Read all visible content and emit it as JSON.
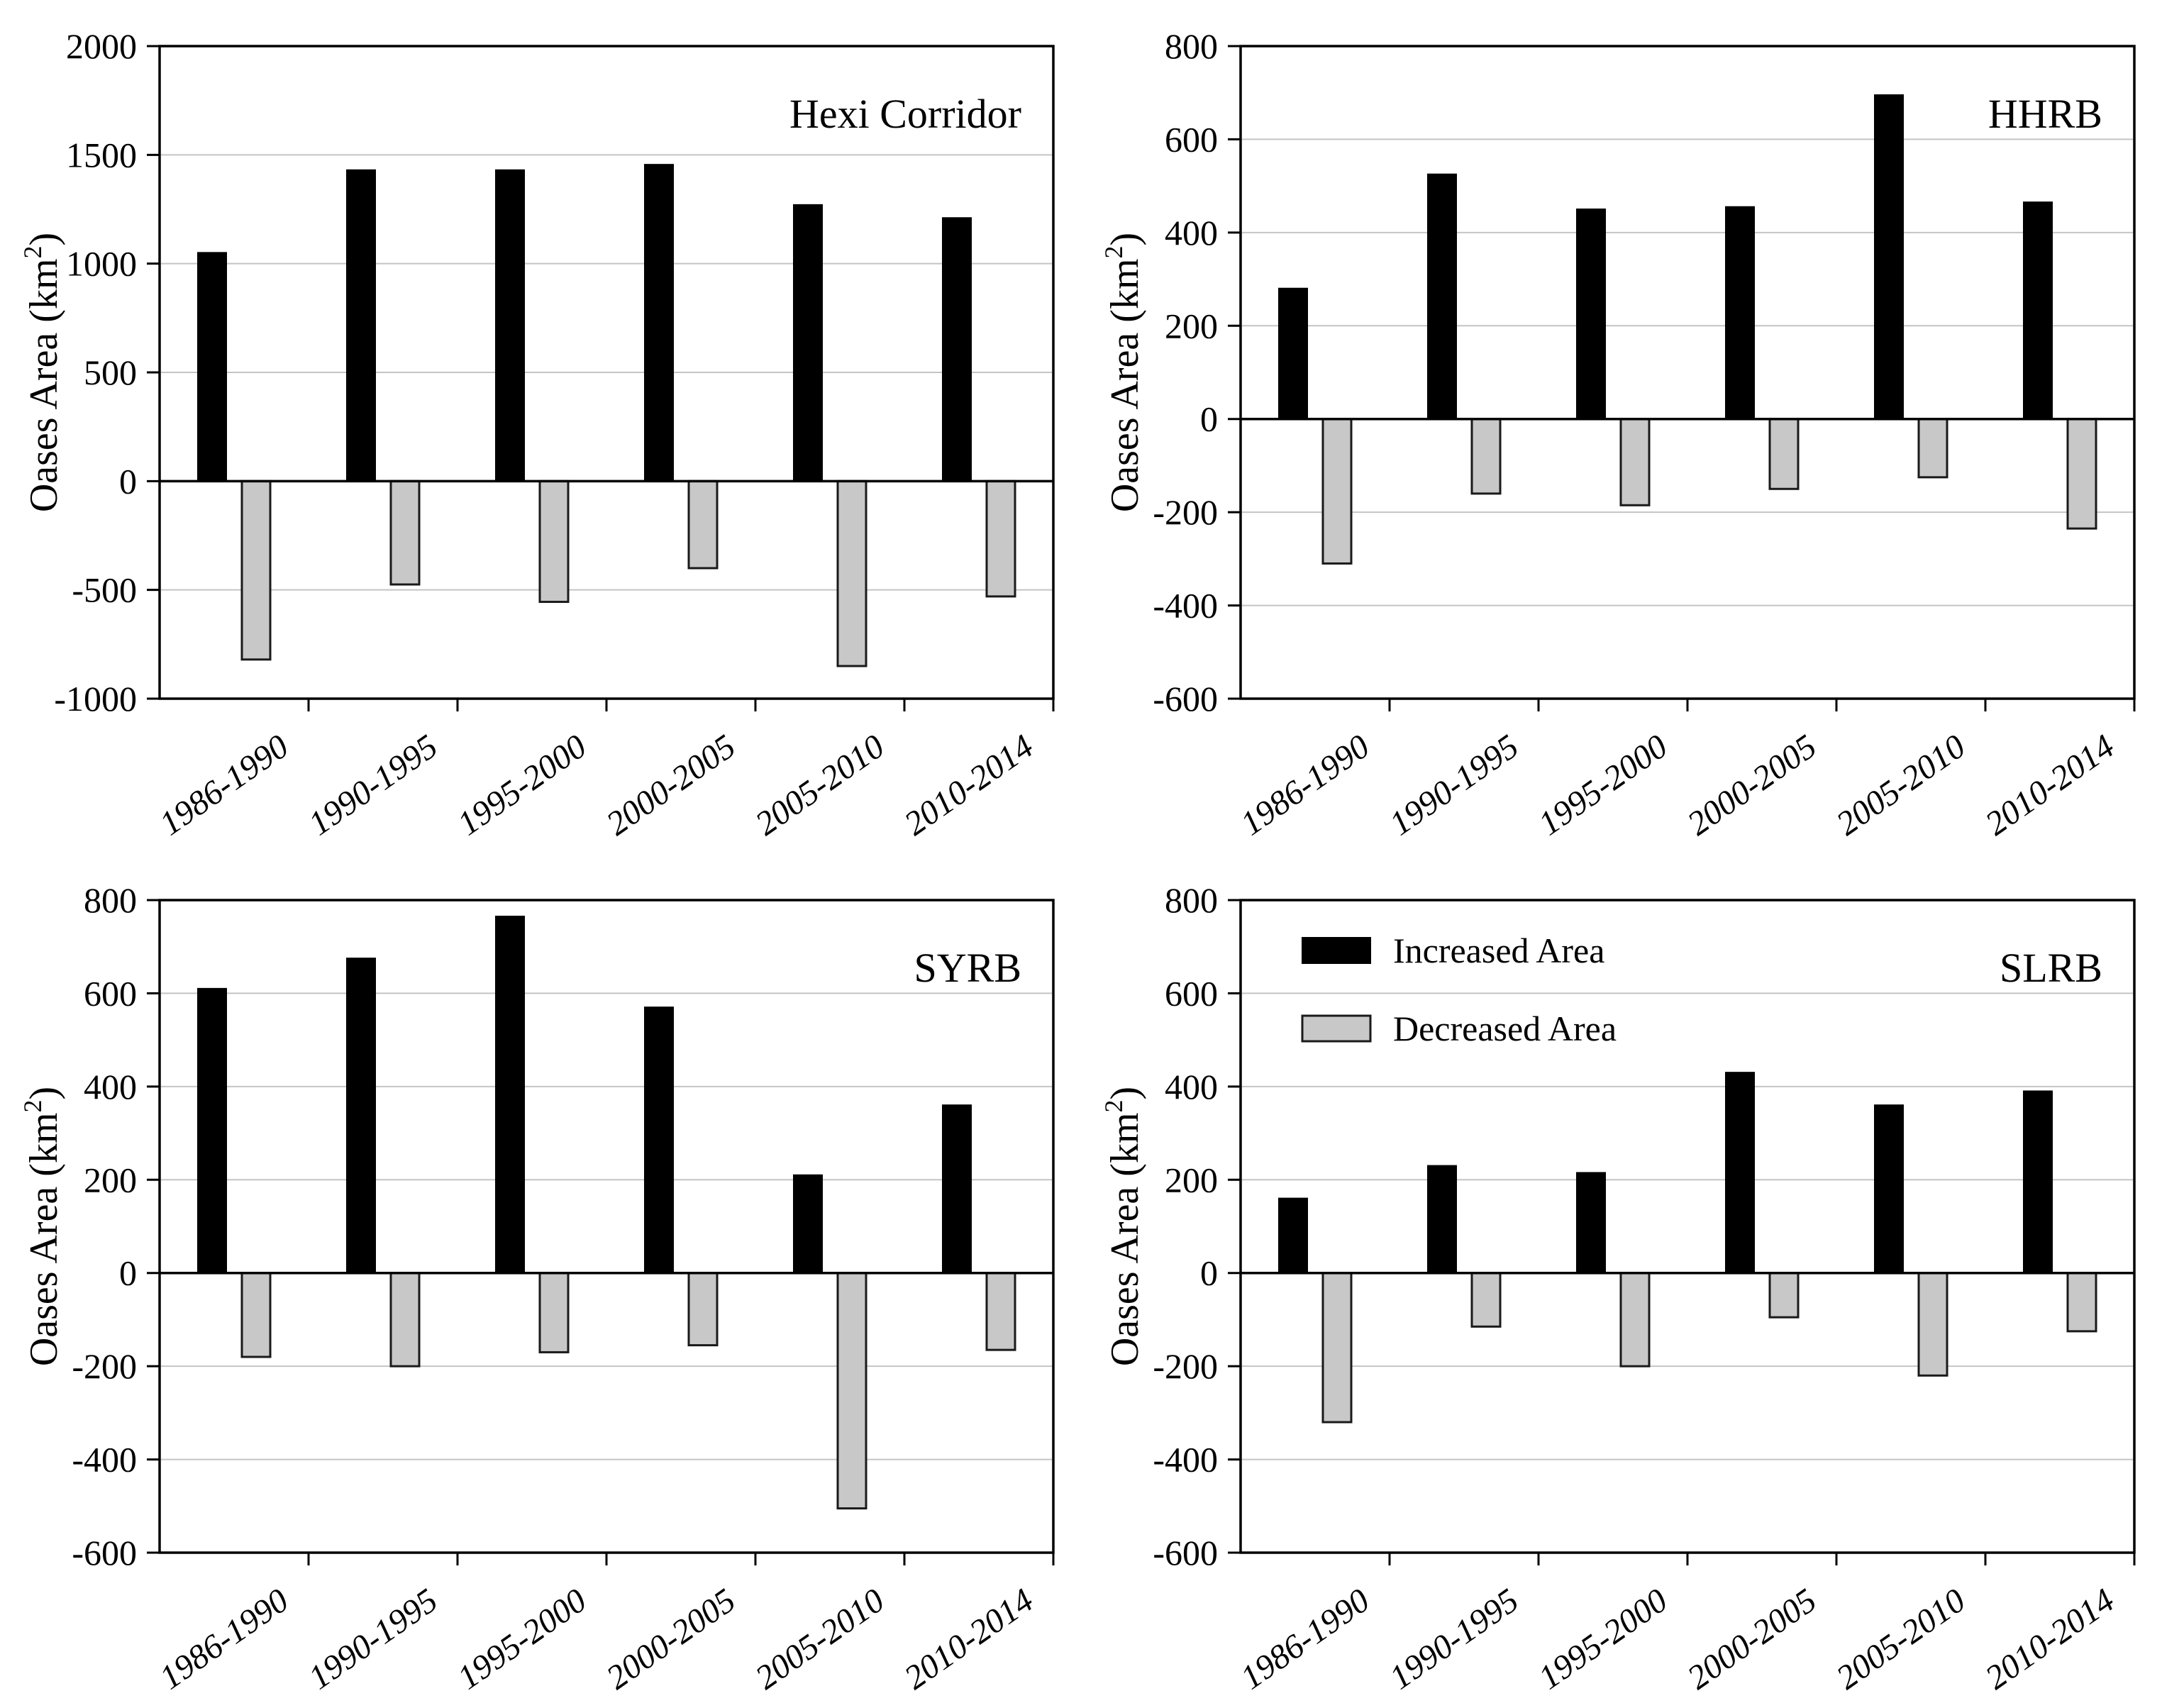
{
  "figure": {
    "ylabel": {
      "main": "Oases Area (km",
      "sup": "2",
      "close": ")"
    },
    "categories": [
      "1986-1990",
      "1990-1995",
      "1995-2000",
      "2000-2005",
      "2005-2010",
      "2010-2014"
    ],
    "legend": [
      {
        "label": "Increased Area",
        "series": "increased"
      },
      {
        "label": "Decreased Area",
        "series": "decreased"
      }
    ],
    "colors": {
      "increased": "#000000",
      "decreased": "#c8c8c8",
      "decreased_border": "#1a1a1a",
      "gridline": "#c4c4c4",
      "axis": "#000000",
      "background": "#ffffff",
      "text": "#000000"
    }
  },
  "chart_data": [
    {
      "type": "bar",
      "title": "Hexi Corridor",
      "ylabel": "Oases Area (km2)",
      "xlabel": "",
      "ylim": [
        -1000,
        2000
      ],
      "yticks": [
        2000,
        1500,
        1000,
        500,
        0,
        -500,
        -1000
      ],
      "grid": true,
      "legend_visible": false,
      "categories": [
        "1986-1990",
        "1990-1995",
        "1995-2000",
        "2000-2005",
        "2005-2010",
        "2010-2014"
      ],
      "series": [
        {
          "name": "Increased Area",
          "values": [
            1050,
            1430,
            1430,
            1455,
            1270,
            1210
          ]
        },
        {
          "name": "Decreased Area",
          "values": [
            -820,
            -475,
            -555,
            -400,
            -850,
            -530
          ]
        }
      ]
    },
    {
      "type": "bar",
      "title": "HHRB",
      "ylabel": "Oases Area (km2)",
      "xlabel": "",
      "ylim": [
        -600,
        800
      ],
      "yticks": [
        800,
        600,
        400,
        200,
        0,
        -200,
        -400,
        -600
      ],
      "grid": true,
      "legend_visible": false,
      "categories": [
        "1986-1990",
        "1990-1995",
        "1995-2000",
        "2000-2005",
        "2005-2010",
        "2010-2014"
      ],
      "series": [
        {
          "name": "Increased Area",
          "values": [
            280,
            525,
            450,
            455,
            695,
            465
          ]
        },
        {
          "name": "Decreased Area",
          "values": [
            -310,
            -160,
            -185,
            -150,
            -125,
            -235
          ]
        }
      ]
    },
    {
      "type": "bar",
      "title": "SYRB",
      "ylabel": "Oases Area (km2)",
      "xlabel": "",
      "ylim": [
        -600,
        800
      ],
      "yticks": [
        800,
        600,
        400,
        200,
        0,
        -200,
        -400,
        -600
      ],
      "grid": true,
      "legend_visible": false,
      "categories": [
        "1986-1990",
        "1990-1995",
        "1995-2000",
        "2000-2005",
        "2005-2010",
        "2010-2014"
      ],
      "series": [
        {
          "name": "Increased Area",
          "values": [
            610,
            675,
            765,
            570,
            210,
            360
          ]
        },
        {
          "name": "Decreased Area",
          "values": [
            -180,
            -200,
            -170,
            -155,
            -505,
            -165
          ]
        }
      ]
    },
    {
      "type": "bar",
      "title": "SLRB",
      "ylabel": "Oases Area (km2)",
      "xlabel": "",
      "ylim": [
        -600,
        800
      ],
      "yticks": [
        800,
        600,
        400,
        200,
        0,
        -200,
        -400,
        -600
      ],
      "grid": true,
      "legend_visible": true,
      "legend_position": "top-left",
      "categories": [
        "1986-1990",
        "1990-1995",
        "1995-2000",
        "2000-2005",
        "2005-2010",
        "2010-2014"
      ],
      "series": [
        {
          "name": "Increased Area",
          "values": [
            160,
            230,
            215,
            430,
            360,
            390
          ]
        },
        {
          "name": "Decreased Area",
          "values": [
            -320,
            -115,
            -200,
            -95,
            -220,
            -125
          ]
        }
      ]
    }
  ]
}
